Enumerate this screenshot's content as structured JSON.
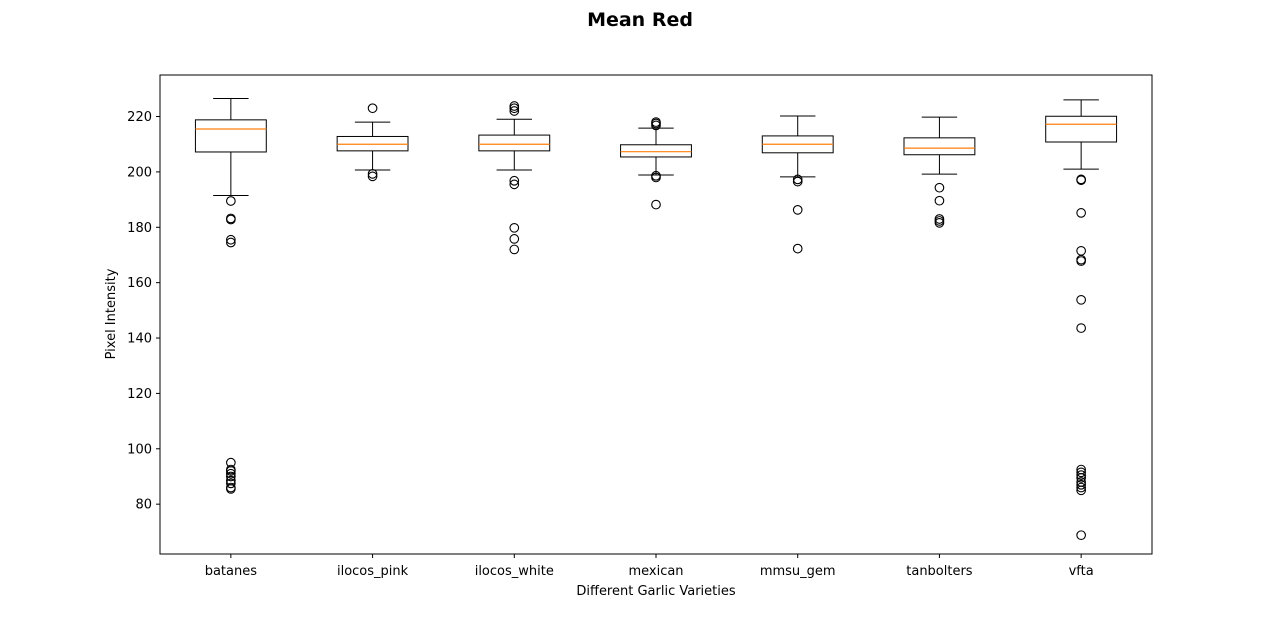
{
  "chart_data": {
    "type": "box",
    "title": "Mean Red",
    "xlabel": "Different Garlic Varieties",
    "ylabel": "Pixel Intensity",
    "ylim": [
      62,
      235
    ],
    "yticks": [
      80,
      100,
      120,
      140,
      160,
      180,
      200,
      220
    ],
    "grid": false,
    "colors": {
      "box": "#000000",
      "median": "#ff7f0e",
      "flier": "#000000"
    },
    "categories": [
      "batanes",
      "ilocos_pink",
      "ilocos_white",
      "mexican",
      "mmsu_gem",
      "tanbolters",
      "vfta"
    ],
    "boxes": [
      {
        "whisker_low": 191.5,
        "q1": 207.2,
        "median": 215.5,
        "q3": 218.8,
        "whisker_high": 226.5,
        "outliers": [
          189.5,
          183.2,
          182.8,
          175.5,
          174.5,
          95.0,
          92.5,
          92.0,
          91.0,
          90.0,
          88.5,
          87.5,
          86.0,
          85.5
        ]
      },
      {
        "whisker_low": 200.7,
        "q1": 207.6,
        "median": 210.0,
        "q3": 212.8,
        "whisker_high": 218.0,
        "outliers": [
          223.0,
          199.3,
          198.4
        ]
      },
      {
        "whisker_low": 200.7,
        "q1": 207.6,
        "median": 210.0,
        "q3": 213.3,
        "whisker_high": 219.0,
        "outliers": [
          223.8,
          223.0,
          222.0,
          196.8,
          195.5,
          179.8,
          175.8,
          172.0
        ]
      },
      {
        "whisker_low": 198.9,
        "q1": 205.4,
        "median": 207.3,
        "q3": 209.8,
        "whisker_high": 215.8,
        "outliers": [
          218.0,
          217.5,
          216.8,
          198.6,
          198.0,
          188.2
        ]
      },
      {
        "whisker_low": 198.2,
        "q1": 206.9,
        "median": 210.0,
        "q3": 213.0,
        "whisker_high": 220.2,
        "outliers": [
          197.3,
          196.5,
          186.3,
          172.3
        ]
      },
      {
        "whisker_low": 199.2,
        "q1": 206.2,
        "median": 208.6,
        "q3": 212.3,
        "whisker_high": 219.8,
        "outliers": [
          194.3,
          189.6,
          183.0,
          182.3,
          181.6
        ]
      },
      {
        "whisker_low": 201.0,
        "q1": 210.8,
        "median": 217.2,
        "q3": 220.1,
        "whisker_high": 226.0,
        "outliers": [
          197.3,
          197.0,
          185.2,
          171.5,
          168.3,
          167.8,
          153.8,
          143.6,
          92.5,
          91.5,
          90.5,
          89.5,
          88.0,
          87.0,
          86.0,
          85.0,
          68.8
        ]
      }
    ]
  }
}
